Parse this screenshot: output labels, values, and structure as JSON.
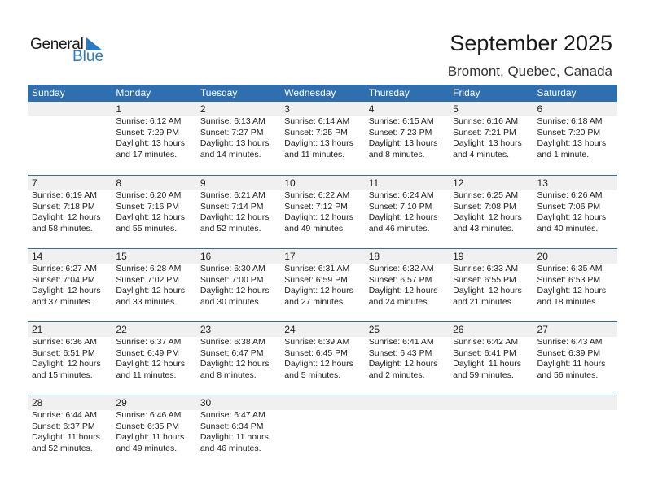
{
  "logo": {
    "text_general": "General",
    "text_blue": "Blue",
    "color": "#2a7bc0"
  },
  "header": {
    "title": "September 2025",
    "location": "Bromont, Quebec, Canada"
  },
  "colors": {
    "header_bg": "#2f6fb0",
    "strip_bg": "#f0f0f0"
  },
  "days": [
    "Sunday",
    "Monday",
    "Tuesday",
    "Wednesday",
    "Thursday",
    "Friday",
    "Saturday"
  ],
  "weeks": [
    [
      null,
      {
        "day": "1",
        "sunrise": "Sunrise: 6:12 AM",
        "sunset": "Sunset: 7:29 PM",
        "daylight1": "Daylight: 13 hours",
        "daylight2": "and 17 minutes."
      },
      {
        "day": "2",
        "sunrise": "Sunrise: 6:13 AM",
        "sunset": "Sunset: 7:27 PM",
        "daylight1": "Daylight: 13 hours",
        "daylight2": "and 14 minutes."
      },
      {
        "day": "3",
        "sunrise": "Sunrise: 6:14 AM",
        "sunset": "Sunset: 7:25 PM",
        "daylight1": "Daylight: 13 hours",
        "daylight2": "and 11 minutes."
      },
      {
        "day": "4",
        "sunrise": "Sunrise: 6:15 AM",
        "sunset": "Sunset: 7:23 PM",
        "daylight1": "Daylight: 13 hours",
        "daylight2": "and 8 minutes."
      },
      {
        "day": "5",
        "sunrise": "Sunrise: 6:16 AM",
        "sunset": "Sunset: 7:21 PM",
        "daylight1": "Daylight: 13 hours",
        "daylight2": "and 4 minutes."
      },
      {
        "day": "6",
        "sunrise": "Sunrise: 6:18 AM",
        "sunset": "Sunset: 7:20 PM",
        "daylight1": "Daylight: 13 hours",
        "daylight2": "and 1 minute."
      }
    ],
    [
      {
        "day": "7",
        "sunrise": "Sunrise: 6:19 AM",
        "sunset": "Sunset: 7:18 PM",
        "daylight1": "Daylight: 12 hours",
        "daylight2": "and 58 minutes."
      },
      {
        "day": "8",
        "sunrise": "Sunrise: 6:20 AM",
        "sunset": "Sunset: 7:16 PM",
        "daylight1": "Daylight: 12 hours",
        "daylight2": "and 55 minutes."
      },
      {
        "day": "9",
        "sunrise": "Sunrise: 6:21 AM",
        "sunset": "Sunset: 7:14 PM",
        "daylight1": "Daylight: 12 hours",
        "daylight2": "and 52 minutes."
      },
      {
        "day": "10",
        "sunrise": "Sunrise: 6:22 AM",
        "sunset": "Sunset: 7:12 PM",
        "daylight1": "Daylight: 12 hours",
        "daylight2": "and 49 minutes."
      },
      {
        "day": "11",
        "sunrise": "Sunrise: 6:24 AM",
        "sunset": "Sunset: 7:10 PM",
        "daylight1": "Daylight: 12 hours",
        "daylight2": "and 46 minutes."
      },
      {
        "day": "12",
        "sunrise": "Sunrise: 6:25 AM",
        "sunset": "Sunset: 7:08 PM",
        "daylight1": "Daylight: 12 hours",
        "daylight2": "and 43 minutes."
      },
      {
        "day": "13",
        "sunrise": "Sunrise: 6:26 AM",
        "sunset": "Sunset: 7:06 PM",
        "daylight1": "Daylight: 12 hours",
        "daylight2": "and 40 minutes."
      }
    ],
    [
      {
        "day": "14",
        "sunrise": "Sunrise: 6:27 AM",
        "sunset": "Sunset: 7:04 PM",
        "daylight1": "Daylight: 12 hours",
        "daylight2": "and 37 minutes."
      },
      {
        "day": "15",
        "sunrise": "Sunrise: 6:28 AM",
        "sunset": "Sunset: 7:02 PM",
        "daylight1": "Daylight: 12 hours",
        "daylight2": "and 33 minutes."
      },
      {
        "day": "16",
        "sunrise": "Sunrise: 6:30 AM",
        "sunset": "Sunset: 7:00 PM",
        "daylight1": "Daylight: 12 hours",
        "daylight2": "and 30 minutes."
      },
      {
        "day": "17",
        "sunrise": "Sunrise: 6:31 AM",
        "sunset": "Sunset: 6:59 PM",
        "daylight1": "Daylight: 12 hours",
        "daylight2": "and 27 minutes."
      },
      {
        "day": "18",
        "sunrise": "Sunrise: 6:32 AM",
        "sunset": "Sunset: 6:57 PM",
        "daylight1": "Daylight: 12 hours",
        "daylight2": "and 24 minutes."
      },
      {
        "day": "19",
        "sunrise": "Sunrise: 6:33 AM",
        "sunset": "Sunset: 6:55 PM",
        "daylight1": "Daylight: 12 hours",
        "daylight2": "and 21 minutes."
      },
      {
        "day": "20",
        "sunrise": "Sunrise: 6:35 AM",
        "sunset": "Sunset: 6:53 PM",
        "daylight1": "Daylight: 12 hours",
        "daylight2": "and 18 minutes."
      }
    ],
    [
      {
        "day": "21",
        "sunrise": "Sunrise: 6:36 AM",
        "sunset": "Sunset: 6:51 PM",
        "daylight1": "Daylight: 12 hours",
        "daylight2": "and 15 minutes."
      },
      {
        "day": "22",
        "sunrise": "Sunrise: 6:37 AM",
        "sunset": "Sunset: 6:49 PM",
        "daylight1": "Daylight: 12 hours",
        "daylight2": "and 11 minutes."
      },
      {
        "day": "23",
        "sunrise": "Sunrise: 6:38 AM",
        "sunset": "Sunset: 6:47 PM",
        "daylight1": "Daylight: 12 hours",
        "daylight2": "and 8 minutes."
      },
      {
        "day": "24",
        "sunrise": "Sunrise: 6:39 AM",
        "sunset": "Sunset: 6:45 PM",
        "daylight1": "Daylight: 12 hours",
        "daylight2": "and 5 minutes."
      },
      {
        "day": "25",
        "sunrise": "Sunrise: 6:41 AM",
        "sunset": "Sunset: 6:43 PM",
        "daylight1": "Daylight: 12 hours",
        "daylight2": "and 2 minutes."
      },
      {
        "day": "26",
        "sunrise": "Sunrise: 6:42 AM",
        "sunset": "Sunset: 6:41 PM",
        "daylight1": "Daylight: 11 hours",
        "daylight2": "and 59 minutes."
      },
      {
        "day": "27",
        "sunrise": "Sunrise: 6:43 AM",
        "sunset": "Sunset: 6:39 PM",
        "daylight1": "Daylight: 11 hours",
        "daylight2": "and 56 minutes."
      }
    ],
    [
      {
        "day": "28",
        "sunrise": "Sunrise: 6:44 AM",
        "sunset": "Sunset: 6:37 PM",
        "daylight1": "Daylight: 11 hours",
        "daylight2": "and 52 minutes."
      },
      {
        "day": "29",
        "sunrise": "Sunrise: 6:46 AM",
        "sunset": "Sunset: 6:35 PM",
        "daylight1": "Daylight: 11 hours",
        "daylight2": "and 49 minutes."
      },
      {
        "day": "30",
        "sunrise": "Sunrise: 6:47 AM",
        "sunset": "Sunset: 6:34 PM",
        "daylight1": "Daylight: 11 hours",
        "daylight2": "and 46 minutes."
      },
      null,
      null,
      null,
      null
    ]
  ]
}
